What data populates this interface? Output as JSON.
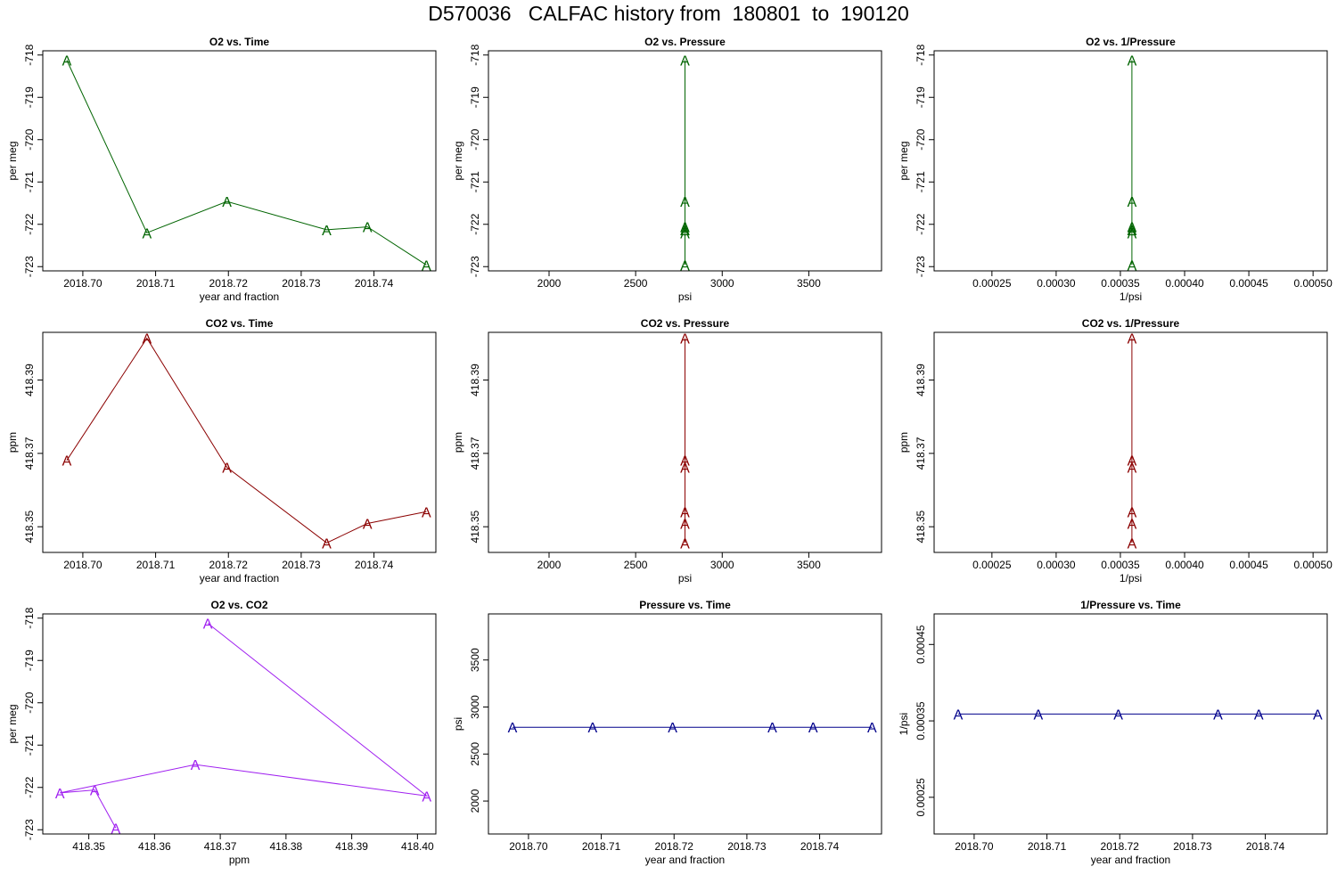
{
  "figure": {
    "title": "D570036   CALFAC history from  180801  to  190120"
  },
  "colors": {
    "o2": "#006400",
    "co2": "#8b0000",
    "mix": "#a020f0",
    "pressure": "#00008b"
  },
  "chart_data": [
    {
      "type": "line",
      "title": "O2 vs. Time",
      "xlabel": "year and fraction",
      "ylabel": "per meg",
      "xlim": [
        2018.6945,
        2018.7485
      ],
      "ylim": [
        -723.1,
        -717.9
      ],
      "xticks": [
        2018.7,
        2018.71,
        2018.72,
        2018.73,
        2018.74
      ],
      "xtick_labels": [
        "2018.70",
        "2018.71",
        "2018.72",
        "2018.73",
        "2018.74"
      ],
      "yticks": [
        -723,
        -722,
        -721,
        -720,
        -719,
        -718
      ],
      "ytick_labels": [
        "-723",
        "-722",
        "-721",
        "-720",
        "-719",
        "-718"
      ],
      "marker": "A",
      "color": "#006400",
      "x": [
        2018.6978,
        2018.7088,
        2018.7198,
        2018.7335,
        2018.7391,
        2018.7472
      ],
      "y": [
        -718.12,
        -722.2,
        -721.46,
        -722.13,
        -722.06,
        -722.96
      ]
    },
    {
      "type": "line",
      "title": "O2 vs. Pressure",
      "xlabel": "psi",
      "ylabel": "per meg",
      "xlim": [
        1650,
        3920
      ],
      "ylim": [
        -723.1,
        -717.9
      ],
      "xticks": [
        2000,
        2500,
        3000,
        3500
      ],
      "xtick_labels": [
        "2000",
        "2500",
        "3000",
        "3500"
      ],
      "yticks": [
        -723,
        -722,
        -721,
        -720,
        -719,
        -718
      ],
      "ytick_labels": [
        "-723",
        "-722",
        "-721",
        "-720",
        "-719",
        "-718"
      ],
      "marker": "A",
      "color": "#006400",
      "x": [
        2785,
        2785,
        2785,
        2785,
        2785,
        2785
      ],
      "y": [
        -718.12,
        -722.2,
        -721.46,
        -722.13,
        -722.06,
        -722.96
      ]
    },
    {
      "type": "line",
      "title": "O2 vs. 1/Pressure",
      "xlabel": "1/psi",
      "ylabel": "per meg",
      "xlim": [
        0.000205,
        0.000511
      ],
      "ylim": [
        -723.1,
        -717.9
      ],
      "xticks": [
        0.00025,
        0.0003,
        0.00035,
        0.0004,
        0.00045,
        0.0005
      ],
      "xtick_labels": [
        "0.00025",
        "0.00030",
        "0.00035",
        "0.00040",
        "0.00045",
        "0.00050"
      ],
      "yticks": [
        -723,
        -722,
        -721,
        -720,
        -719,
        -718
      ],
      "ytick_labels": [
        "-723",
        "-722",
        "-721",
        "-720",
        "-719",
        "-718"
      ],
      "marker": "A",
      "color": "#006400",
      "x": [
        0.000359,
        0.000359,
        0.000359,
        0.000359,
        0.000359,
        0.000359
      ],
      "y": [
        -718.12,
        -722.2,
        -721.46,
        -722.13,
        -722.06,
        -722.96
      ]
    },
    {
      "type": "line",
      "title": "CO2 vs. Time",
      "xlabel": "year and fraction",
      "ylabel": "ppm",
      "xlim": [
        2018.6945,
        2018.7485
      ],
      "ylim": [
        418.343,
        418.403
      ],
      "xticks": [
        2018.7,
        2018.71,
        2018.72,
        2018.73,
        2018.74
      ],
      "xtick_labels": [
        "2018.70",
        "2018.71",
        "2018.72",
        "2018.73",
        "2018.74"
      ],
      "yticks": [
        418.35,
        418.37,
        418.39
      ],
      "ytick_labels": [
        "418.35",
        "418.37",
        "418.39"
      ],
      "marker": "A",
      "color": "#8b0000",
      "x": [
        2018.6978,
        2018.7088,
        2018.7198,
        2018.7335,
        2018.7391,
        2018.7472
      ],
      "y": [
        418.3681,
        418.4014,
        418.3662,
        418.3456,
        418.3509,
        418.3541
      ]
    },
    {
      "type": "line",
      "title": "CO2 vs. Pressure",
      "xlabel": "psi",
      "ylabel": "ppm",
      "xlim": [
        1650,
        3920
      ],
      "ylim": [
        418.343,
        418.403
      ],
      "xticks": [
        2000,
        2500,
        3000,
        3500
      ],
      "xtick_labels": [
        "2000",
        "2500",
        "3000",
        "3500"
      ],
      "yticks": [
        418.35,
        418.37,
        418.39
      ],
      "ytick_labels": [
        "418.35",
        "418.37",
        "418.39"
      ],
      "marker": "A",
      "color": "#8b0000",
      "x": [
        2785,
        2785,
        2785,
        2785,
        2785,
        2785
      ],
      "y": [
        418.3681,
        418.4014,
        418.3662,
        418.3456,
        418.3509,
        418.3541
      ]
    },
    {
      "type": "line",
      "title": "CO2 vs. 1/Pressure",
      "xlabel": "1/psi",
      "ylabel": "ppm",
      "xlim": [
        0.000205,
        0.000511
      ],
      "ylim": [
        418.343,
        418.403
      ],
      "xticks": [
        0.00025,
        0.0003,
        0.00035,
        0.0004,
        0.00045,
        0.0005
      ],
      "xtick_labels": [
        "0.00025",
        "0.00030",
        "0.00035",
        "0.00040",
        "0.00045",
        "0.00050"
      ],
      "yticks": [
        418.35,
        418.37,
        418.39
      ],
      "ytick_labels": [
        "418.35",
        "418.37",
        "418.39"
      ],
      "marker": "A",
      "color": "#8b0000",
      "x": [
        0.000359,
        0.000359,
        0.000359,
        0.000359,
        0.000359,
        0.000359
      ],
      "y": [
        418.3681,
        418.4014,
        418.3662,
        418.3456,
        418.3509,
        418.3541
      ]
    },
    {
      "type": "line",
      "title": "O2 vs. CO2",
      "xlabel": "ppm",
      "ylabel": "per meg",
      "xlim": [
        418.343,
        418.4028
      ],
      "ylim": [
        -723.1,
        -717.9
      ],
      "xticks": [
        418.35,
        418.36,
        418.37,
        418.38,
        418.39,
        418.4
      ],
      "xtick_labels": [
        "418.35",
        "418.36",
        "418.37",
        "418.38",
        "418.39",
        "418.40"
      ],
      "yticks": [
        -723,
        -722,
        -721,
        -720,
        -719,
        -718
      ],
      "ytick_labels": [
        "-723",
        "-722",
        "-721",
        "-720",
        "-719",
        "-718"
      ],
      "marker": "A",
      "color": "#a020f0",
      "x": [
        418.3681,
        418.4014,
        418.3662,
        418.3456,
        418.3509,
        418.3541
      ],
      "y": [
        -718.12,
        -722.2,
        -721.46,
        -722.13,
        -722.06,
        -722.96
      ]
    },
    {
      "type": "line",
      "title": "Pressure vs. Time",
      "xlabel": "year and fraction",
      "ylabel": "psi",
      "xlim": [
        2018.6945,
        2018.7485
      ],
      "ylim": [
        1650,
        3990
      ],
      "xticks": [
        2018.7,
        2018.71,
        2018.72,
        2018.73,
        2018.74
      ],
      "xtick_labels": [
        "2018.70",
        "2018.71",
        "2018.72",
        "2018.73",
        "2018.74"
      ],
      "yticks": [
        2000,
        2500,
        3000,
        3500
      ],
      "ytick_labels": [
        "2000",
        "2500",
        "3000",
        "3500"
      ],
      "marker": "A",
      "color": "#00008b",
      "x": [
        2018.6978,
        2018.7088,
        2018.7198,
        2018.7335,
        2018.7391,
        2018.7472
      ],
      "y": [
        2785,
        2785,
        2785,
        2785,
        2785,
        2785
      ]
    },
    {
      "type": "line",
      "title": "1/Pressure vs. Time",
      "xlabel": "year and fraction",
      "ylabel": "1/psi",
      "xlim": [
        2018.6945,
        2018.7485
      ],
      "ylim": [
        0.000202,
        0.00049
      ],
      "xticks": [
        2018.7,
        2018.71,
        2018.72,
        2018.73,
        2018.74
      ],
      "xtick_labels": [
        "2018.70",
        "2018.71",
        "2018.72",
        "2018.73",
        "2018.74"
      ],
      "yticks": [
        0.00025,
        0.00035,
        0.00045
      ],
      "ytick_labels": [
        "0.00025",
        "0.00035",
        "0.00045"
      ],
      "marker": "A",
      "color": "#00008b",
      "x": [
        2018.6978,
        2018.7088,
        2018.7198,
        2018.7335,
        2018.7391,
        2018.7472
      ],
      "y": [
        0.000359,
        0.000359,
        0.000359,
        0.000359,
        0.000359,
        0.000359
      ]
    }
  ]
}
